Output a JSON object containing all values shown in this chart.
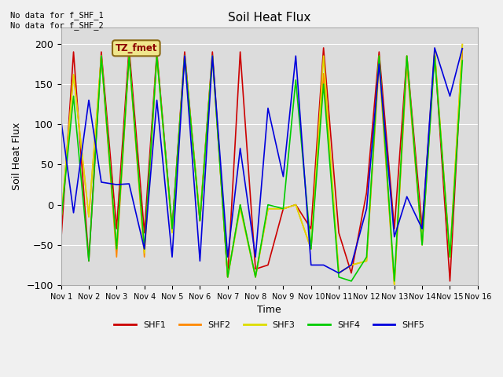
{
  "title": "Soil Heat Flux",
  "ylabel": "Soil Heat Flux",
  "xlabel": "Time",
  "ylim": [
    -100,
    220
  ],
  "figsize": [
    6.4,
    4.8
  ],
  "dpi": 100,
  "background_color": "#dcdcdc",
  "fig_background": "#f0f0f0",
  "annotation_text": "No data for f_SHF_1\nNo data for f_SHF_2",
  "box_label": "TZ_fmet",
  "x_ticks": [
    1,
    2,
    3,
    4,
    5,
    6,
    7,
    8,
    9,
    10,
    11,
    12,
    13,
    14,
    15,
    16
  ],
  "x_tick_labels": [
    "Nov 1",
    "Nov 2",
    "Nov 3",
    "Nov 4",
    "Nov 5",
    "Nov 6",
    "Nov 7",
    "Nov 8",
    "Nov 9",
    "Nov 10",
    "Nov 11",
    "Nov 12",
    "Nov 13",
    "Nov 14",
    "Nov 15",
    "Nov 16"
  ],
  "series": {
    "SHF1": {
      "color": "#cc0000",
      "x": [
        1,
        1.45,
        2,
        2.45,
        3,
        3.45,
        4,
        4.45,
        5,
        5.45,
        6,
        6.45,
        7,
        7.45,
        8,
        8.45,
        9,
        9.45,
        10,
        10.45,
        11,
        11.45,
        12,
        12.45,
        13,
        13.45,
        14,
        14.45,
        15,
        15.45
      ],
      "y": [
        -45,
        190,
        -70,
        190,
        -30,
        195,
        -35,
        190,
        -30,
        190,
        -20,
        190,
        -90,
        190,
        -80,
        -75,
        -5,
        0,
        -30,
        195,
        -35,
        -85,
        15,
        190,
        -30,
        185,
        -30,
        190,
        -95,
        195
      ]
    },
    "SHF2": {
      "color": "#ff8800",
      "x": [
        1,
        1.45,
        2,
        2.45,
        3,
        3.45,
        4,
        4.45,
        5,
        5.45,
        6,
        6.45,
        7,
        7.45,
        8,
        8.45,
        9,
        9.45,
        10,
        10.45,
        11,
        11.45,
        12,
        12.45,
        13,
        13.45,
        14,
        14.45,
        15,
        15.45
      ],
      "y": [
        -20,
        162,
        -15,
        185,
        -65,
        185,
        -65,
        185,
        -30,
        185,
        -20,
        185,
        -90,
        0,
        -90,
        -5,
        -5,
        0,
        -55,
        163,
        -85,
        -75,
        -70,
        175,
        -100,
        175,
        -50,
        190,
        -65,
        200
      ]
    },
    "SHF3": {
      "color": "#dddd00",
      "x": [
        1,
        1.45,
        2,
        2.45,
        3,
        3.45,
        4,
        4.45,
        5,
        5.45,
        6,
        6.45,
        7,
        7.45,
        8,
        8.45,
        9,
        9.45,
        10,
        10.45,
        11,
        11.45,
        12,
        12.45,
        13,
        13.45,
        14,
        14.45,
        15,
        15.45
      ],
      "y": [
        -20,
        162,
        -15,
        185,
        -55,
        185,
        -60,
        185,
        -35,
        185,
        -15,
        185,
        -90,
        -5,
        -90,
        -5,
        -5,
        0,
        -55,
        185,
        -85,
        -75,
        -70,
        185,
        -100,
        185,
        -50,
        190,
        -65,
        200
      ]
    },
    "SHF4": {
      "color": "#00cc00",
      "x": [
        1,
        1.45,
        2,
        2.45,
        3,
        3.45,
        4,
        4.45,
        5,
        5.45,
        6,
        6.45,
        7,
        7.45,
        8,
        8.45,
        9,
        9.45,
        10,
        10.45,
        11,
        11.45,
        12,
        12.45,
        13,
        13.45,
        14,
        14.45,
        15,
        15.45
      ],
      "y": [
        -20,
        135,
        -70,
        185,
        -55,
        185,
        -55,
        185,
        -30,
        185,
        -20,
        185,
        -90,
        0,
        -90,
        0,
        -5,
        155,
        -55,
        150,
        -90,
        -95,
        -65,
        185,
        -95,
        185,
        -50,
        185,
        -65,
        180
      ]
    },
    "SHF5": {
      "color": "#0000dd",
      "x": [
        1,
        1.45,
        2,
        2.45,
        3,
        3.45,
        4,
        4.45,
        5,
        5.45,
        6,
        6.45,
        7,
        7.45,
        8,
        8.45,
        9,
        9.45,
        10,
        10.45,
        11,
        11.45,
        12,
        12.45,
        13,
        13.45,
        14,
        14.45,
        15,
        15.45
      ],
      "y": [
        105,
        -10,
        130,
        28,
        25,
        26,
        -55,
        130,
        -65,
        185,
        -70,
        185,
        -65,
        70,
        -65,
        120,
        35,
        185,
        -75,
        -75,
        -85,
        -75,
        -5,
        175,
        -40,
        10,
        -30,
        195,
        135,
        195
      ]
    }
  },
  "legend": [
    {
      "label": "SHF1",
      "color": "#cc0000"
    },
    {
      "label": "SHF2",
      "color": "#ff8800"
    },
    {
      "label": "SHF3",
      "color": "#dddd00"
    },
    {
      "label": "SHF4",
      "color": "#00cc00"
    },
    {
      "label": "SHF5",
      "color": "#0000dd"
    }
  ]
}
